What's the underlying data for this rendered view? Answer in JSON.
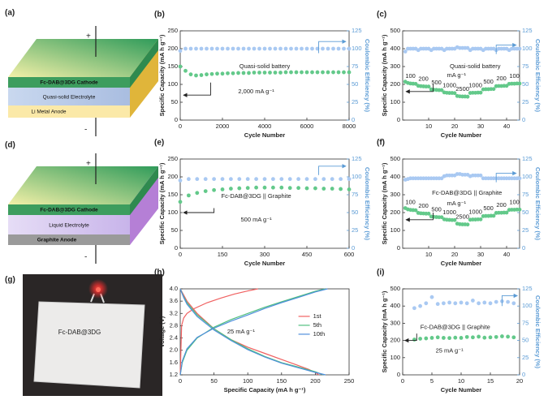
{
  "schematics": [
    {
      "label": "(a)",
      "plus": "+",
      "minus": "-",
      "layers": [
        "Fc-DAB@3DG Cathode",
        "Quasi-solid Electrolyte",
        "Li Metal Anode"
      ]
    },
    {
      "label": "(d)",
      "plus": "+",
      "minus": "-",
      "layers": [
        "Fc-DAB@3DG Cathode",
        "Liquid Electrolyte",
        "Graphite Anode"
      ]
    }
  ],
  "photo": {
    "label": "(g)",
    "text": "Fc-DAB@3DG"
  },
  "chart_data": [
    {
      "type": "scatter",
      "label": "(b)",
      "xlabel": "Cycle Number",
      "ylabel": "Specific Capacity (mA h g⁻¹)",
      "y2label": "Coulombic Efficiency (%)",
      "annotations": [
        "Quasi-solid battery",
        "2,000 mA g⁻¹"
      ],
      "xlim": [
        0,
        8000
      ],
      "xticks": [
        0,
        2000,
        4000,
        6000,
        8000
      ],
      "ylim": [
        0,
        250
      ],
      "yticks": [
        0,
        50,
        100,
        150,
        200,
        250
      ],
      "y2lim": [
        0,
        125
      ],
      "y2ticks": [
        0,
        25,
        50,
        75,
        100,
        125
      ],
      "x": [
        0,
        250,
        500,
        750,
        1000,
        1250,
        1500,
        1750,
        2000,
        2250,
        2500,
        2750,
        3000,
        3250,
        3500,
        3750,
        4000,
        4250,
        4500,
        4750,
        5000,
        5250,
        5500,
        5750,
        6000,
        6250,
        6500,
        6750,
        7000,
        7250,
        7500,
        7750,
        8000
      ],
      "series": [
        {
          "color": "#63c98a",
          "values": [
            150,
            138,
            128,
            125,
            126,
            128,
            129,
            130,
            130,
            131,
            131,
            132,
            132,
            132,
            133,
            133,
            133,
            133,
            133,
            133,
            134,
            134,
            134,
            134,
            134,
            134,
            134,
            134,
            134,
            134,
            134,
            134,
            134
          ]
        },
        {
          "color": "#a9c9f2",
          "axis": "y2",
          "values": [
            97,
            100,
            100,
            100,
            100,
            100,
            100,
            100,
            100,
            100,
            100,
            100,
            100,
            100,
            100,
            100,
            100,
            100,
            100,
            100,
            100,
            100,
            100,
            100,
            100,
            100,
            100,
            100,
            100,
            100,
            100,
            100,
            100
          ]
        }
      ]
    },
    {
      "type": "scatter",
      "label": "(c)",
      "xlabel": "Cycle Number",
      "ylabel": "Specific Capacity (mA h g⁻¹)",
      "y2label": "Coulombic Efficiency (%)",
      "annotations": [
        "Quasi-solid battery",
        "mA g⁻¹"
      ],
      "rate_labels": [
        "100",
        "200",
        "500",
        "1000",
        "2500",
        "1000",
        "500",
        "200",
        "100"
      ],
      "xlim": [
        0,
        45
      ],
      "xticks": [
        10,
        20,
        30,
        40
      ],
      "ylim": [
        0,
        500
      ],
      "yticks": [
        0,
        100,
        200,
        300,
        400,
        500
      ],
      "y2lim": [
        0,
        125
      ],
      "y2ticks": [
        0,
        25,
        50,
        75,
        100,
        125
      ],
      "x": [
        1,
        2,
        3,
        4,
        5,
        6,
        7,
        8,
        9,
        10,
        11,
        12,
        13,
        14,
        15,
        16,
        17,
        18,
        19,
        20,
        21,
        22,
        23,
        24,
        25,
        26,
        27,
        28,
        29,
        30,
        31,
        32,
        33,
        34,
        35,
        36,
        37,
        38,
        39,
        40,
        41,
        42,
        43,
        44,
        45
      ],
      "series": [
        {
          "color": "#63c98a",
          "values": [
            215,
            208,
            205,
            204,
            203,
            192,
            190,
            189,
            188,
            188,
            172,
            170,
            169,
            168,
            168,
            155,
            153,
            152,
            152,
            151,
            135,
            133,
            132,
            132,
            131,
            152,
            153,
            153,
            154,
            154,
            172,
            173,
            173,
            174,
            174,
            190,
            191,
            191,
            192,
            192,
            203,
            204,
            204,
            205,
            205
          ]
        },
        {
          "color": "#a9c9f2",
          "axis": "y2",
          "values": [
            96,
            100,
            100,
            100,
            100,
            98,
            100,
            100,
            100,
            100,
            98,
            100,
            100,
            100,
            100,
            98,
            100,
            100,
            100,
            100,
            102,
            101,
            101,
            101,
            101,
            98,
            100,
            100,
            100,
            100,
            98,
            100,
            100,
            100,
            100,
            98,
            100,
            100,
            100,
            100,
            98,
            100,
            100,
            100,
            100
          ]
        }
      ]
    },
    {
      "type": "scatter",
      "label": "(e)",
      "xlabel": "Cycle Number",
      "ylabel": "Specific Capacity (mA h g⁻¹)",
      "y2label": "Coulombic Efficiency (%)",
      "annotations": [
        "Fc-DAB@3DG || Graphite",
        "500 mA g⁻¹"
      ],
      "xlim": [
        0,
        600
      ],
      "xticks": [
        0,
        150,
        300,
        450,
        600
      ],
      "ylim": [
        0,
        250
      ],
      "yticks": [
        0,
        50,
        100,
        150,
        200,
        250
      ],
      "y2lim": [
        0,
        125
      ],
      "y2ticks": [
        0,
        25,
        50,
        75,
        100,
        125
      ],
      "x": [
        0,
        30,
        60,
        90,
        120,
        150,
        180,
        210,
        240,
        270,
        300,
        330,
        360,
        390,
        420,
        450,
        480,
        510,
        540,
        570,
        600
      ],
      "series": [
        {
          "color": "#63c98a",
          "values": [
            130,
            148,
            155,
            160,
            163,
            165,
            167,
            168,
            169,
            170,
            170,
            170,
            170,
            169,
            169,
            168,
            168,
            167,
            167,
            166,
            165
          ]
        },
        {
          "color": "#a9c9f2",
          "axis": "y2",
          "values": [
            95,
            97,
            97,
            97,
            97,
            97,
            97,
            97,
            97,
            97,
            97,
            97,
            97,
            97,
            97,
            97,
            97,
            97,
            97,
            97,
            97
          ]
        }
      ]
    },
    {
      "type": "scatter",
      "label": "(f)",
      "xlabel": "Cycle Number",
      "ylabel": "Specific Capacity (mA h g⁻¹)",
      "y2label": "Coulombic Efficiency (%)",
      "annotations": [
        "Fc-DAB@3DG || Graphite",
        "mA g⁻¹"
      ],
      "rate_labels": [
        "100",
        "200",
        "500",
        "1000",
        "2500",
        "1000",
        "500",
        "200",
        "100"
      ],
      "xlim": [
        0,
        45
      ],
      "xticks": [
        10,
        20,
        30,
        40
      ],
      "ylim": [
        0,
        500
      ],
      "yticks": [
        0,
        100,
        200,
        300,
        400,
        500
      ],
      "y2lim": [
        0,
        125
      ],
      "y2ticks": [
        0,
        25,
        50,
        75,
        100,
        125
      ],
      "x": [
        1,
        2,
        3,
        4,
        5,
        6,
        7,
        8,
        9,
        10,
        11,
        12,
        13,
        14,
        15,
        16,
        17,
        18,
        19,
        20,
        21,
        22,
        23,
        24,
        25,
        26,
        27,
        28,
        29,
        30,
        31,
        32,
        33,
        34,
        35,
        36,
        37,
        38,
        39,
        40,
        41,
        42,
        43,
        44,
        45
      ],
      "series": [
        {
          "color": "#63c98a",
          "values": [
            225,
            218,
            215,
            214,
            213,
            198,
            196,
            195,
            194,
            194,
            178,
            176,
            175,
            174,
            174,
            162,
            160,
            159,
            158,
            158,
            138,
            135,
            134,
            134,
            133,
            160,
            161,
            161,
            162,
            162,
            180,
            181,
            181,
            182,
            182,
            198,
            199,
            199,
            200,
            200,
            215,
            216,
            216,
            217,
            217
          ]
        },
        {
          "color": "#a9c9f2",
          "axis": "y2",
          "values": [
            96,
            97,
            98,
            98,
            98,
            98,
            98,
            98,
            98,
            98,
            98,
            98,
            98,
            98,
            98,
            101,
            102,
            102,
            102,
            102,
            104,
            104,
            103,
            103,
            103,
            101,
            102,
            102,
            102,
            102,
            98,
            98,
            98,
            98,
            98,
            98,
            98,
            98,
            98,
            98,
            98,
            98,
            98,
            98,
            98
          ]
        }
      ]
    },
    {
      "type": "line",
      "label": "(h)",
      "xlabel": "Specific Capacity (mA h g⁻¹)",
      "ylabel": "Voltage (V)",
      "legend": "right",
      "annotations": [
        "25 mA g⁻¹"
      ],
      "xlim": [
        0,
        250
      ],
      "xticks": [
        0,
        50,
        100,
        150,
        200,
        250
      ],
      "ylim": [
        1.2,
        4.0
      ],
      "yticks": [
        1.2,
        1.6,
        {
          "value": 2,
          "label": "2.0"
        },
        2.4,
        2.8,
        3.2,
        3.6,
        {
          "value": 4,
          "label": "4.0"
        }
      ],
      "series": [
        {
          "name": "1st",
          "color": "#f06060",
          "x": [
            0,
            2,
            5,
            10,
            20,
            40,
            60,
            80,
            100,
            115,
            null,
            0,
            5,
            10,
            25,
            50,
            75,
            100,
            125,
            150,
            175,
            190,
            200,
            205
          ],
          "values": [
            1.2,
            2.8,
            3.05,
            3.2,
            3.35,
            3.55,
            3.7,
            3.83,
            3.93,
            4.0,
            null,
            4.0,
            3.8,
            3.6,
            3.2,
            2.7,
            2.35,
            2.1,
            1.9,
            1.7,
            1.5,
            1.38,
            1.28,
            1.2
          ]
        },
        {
          "name": "5th",
          "color": "#4fbf7f",
          "x": [
            0,
            3,
            10,
            25,
            50,
            75,
            100,
            125,
            150,
            175,
            200,
            215,
            null,
            0,
            5,
            10,
            25,
            50,
            75,
            100,
            125,
            150,
            175,
            200,
            212
          ],
          "values": [
            1.2,
            1.6,
            2.0,
            2.4,
            2.75,
            3.0,
            3.2,
            3.4,
            3.58,
            3.75,
            3.92,
            4.0,
            null,
            4.0,
            3.75,
            3.55,
            3.15,
            2.7,
            2.35,
            2.05,
            1.8,
            1.6,
            1.45,
            1.3,
            1.2
          ]
        },
        {
          "name": "10th",
          "color": "#4f8fdc",
          "x": [
            0,
            3,
            10,
            25,
            50,
            75,
            100,
            125,
            150,
            175,
            200,
            218,
            null,
            0,
            5,
            10,
            25,
            50,
            75,
            100,
            125,
            150,
            175,
            200,
            215
          ],
          "values": [
            1.2,
            1.65,
            2.05,
            2.42,
            2.72,
            2.95,
            3.15,
            3.36,
            3.55,
            3.72,
            3.9,
            4.0,
            null,
            4.0,
            3.72,
            3.5,
            3.1,
            2.66,
            2.32,
            2.02,
            1.78,
            1.58,
            1.43,
            1.28,
            1.2
          ]
        }
      ]
    },
    {
      "type": "scatter",
      "label": "(i)",
      "xlabel": "Cycle Number",
      "ylabel": "Specific Capacity (mA h g⁻¹)",
      "y2label": "Coulombic Efficiency (%)",
      "annotations": [
        "Fc-DAB@3DG || Graphite",
        "25 mA g⁻¹"
      ],
      "xlim": [
        0,
        20
      ],
      "xticks": [
        0,
        5,
        10,
        15,
        20
      ],
      "ylim": [
        0,
        500
      ],
      "yticks": [
        0,
        100,
        200,
        300,
        400,
        500
      ],
      "y2lim": [
        0,
        125
      ],
      "y2ticks": [
        0,
        25,
        50,
        75,
        100,
        125
      ],
      "x": [
        2,
        3,
        4,
        5,
        6,
        7,
        8,
        9,
        10,
        11,
        12,
        13,
        14,
        15,
        16,
        17,
        18,
        19
      ],
      "series": [
        {
          "color": "#63c98a",
          "values": [
            205,
            210,
            212,
            215,
            218,
            215,
            214,
            216,
            215,
            220,
            218,
            222,
            216,
            218,
            220,
            224,
            222,
            218
          ]
        },
        {
          "color": "#a9c9f2",
          "axis": "y2",
          "values": [
            97,
            100,
            104,
            113,
            103,
            104,
            105,
            104,
            105,
            104,
            108,
            104,
            105,
            104,
            106,
            107,
            106,
            104
          ]
        }
      ]
    }
  ]
}
